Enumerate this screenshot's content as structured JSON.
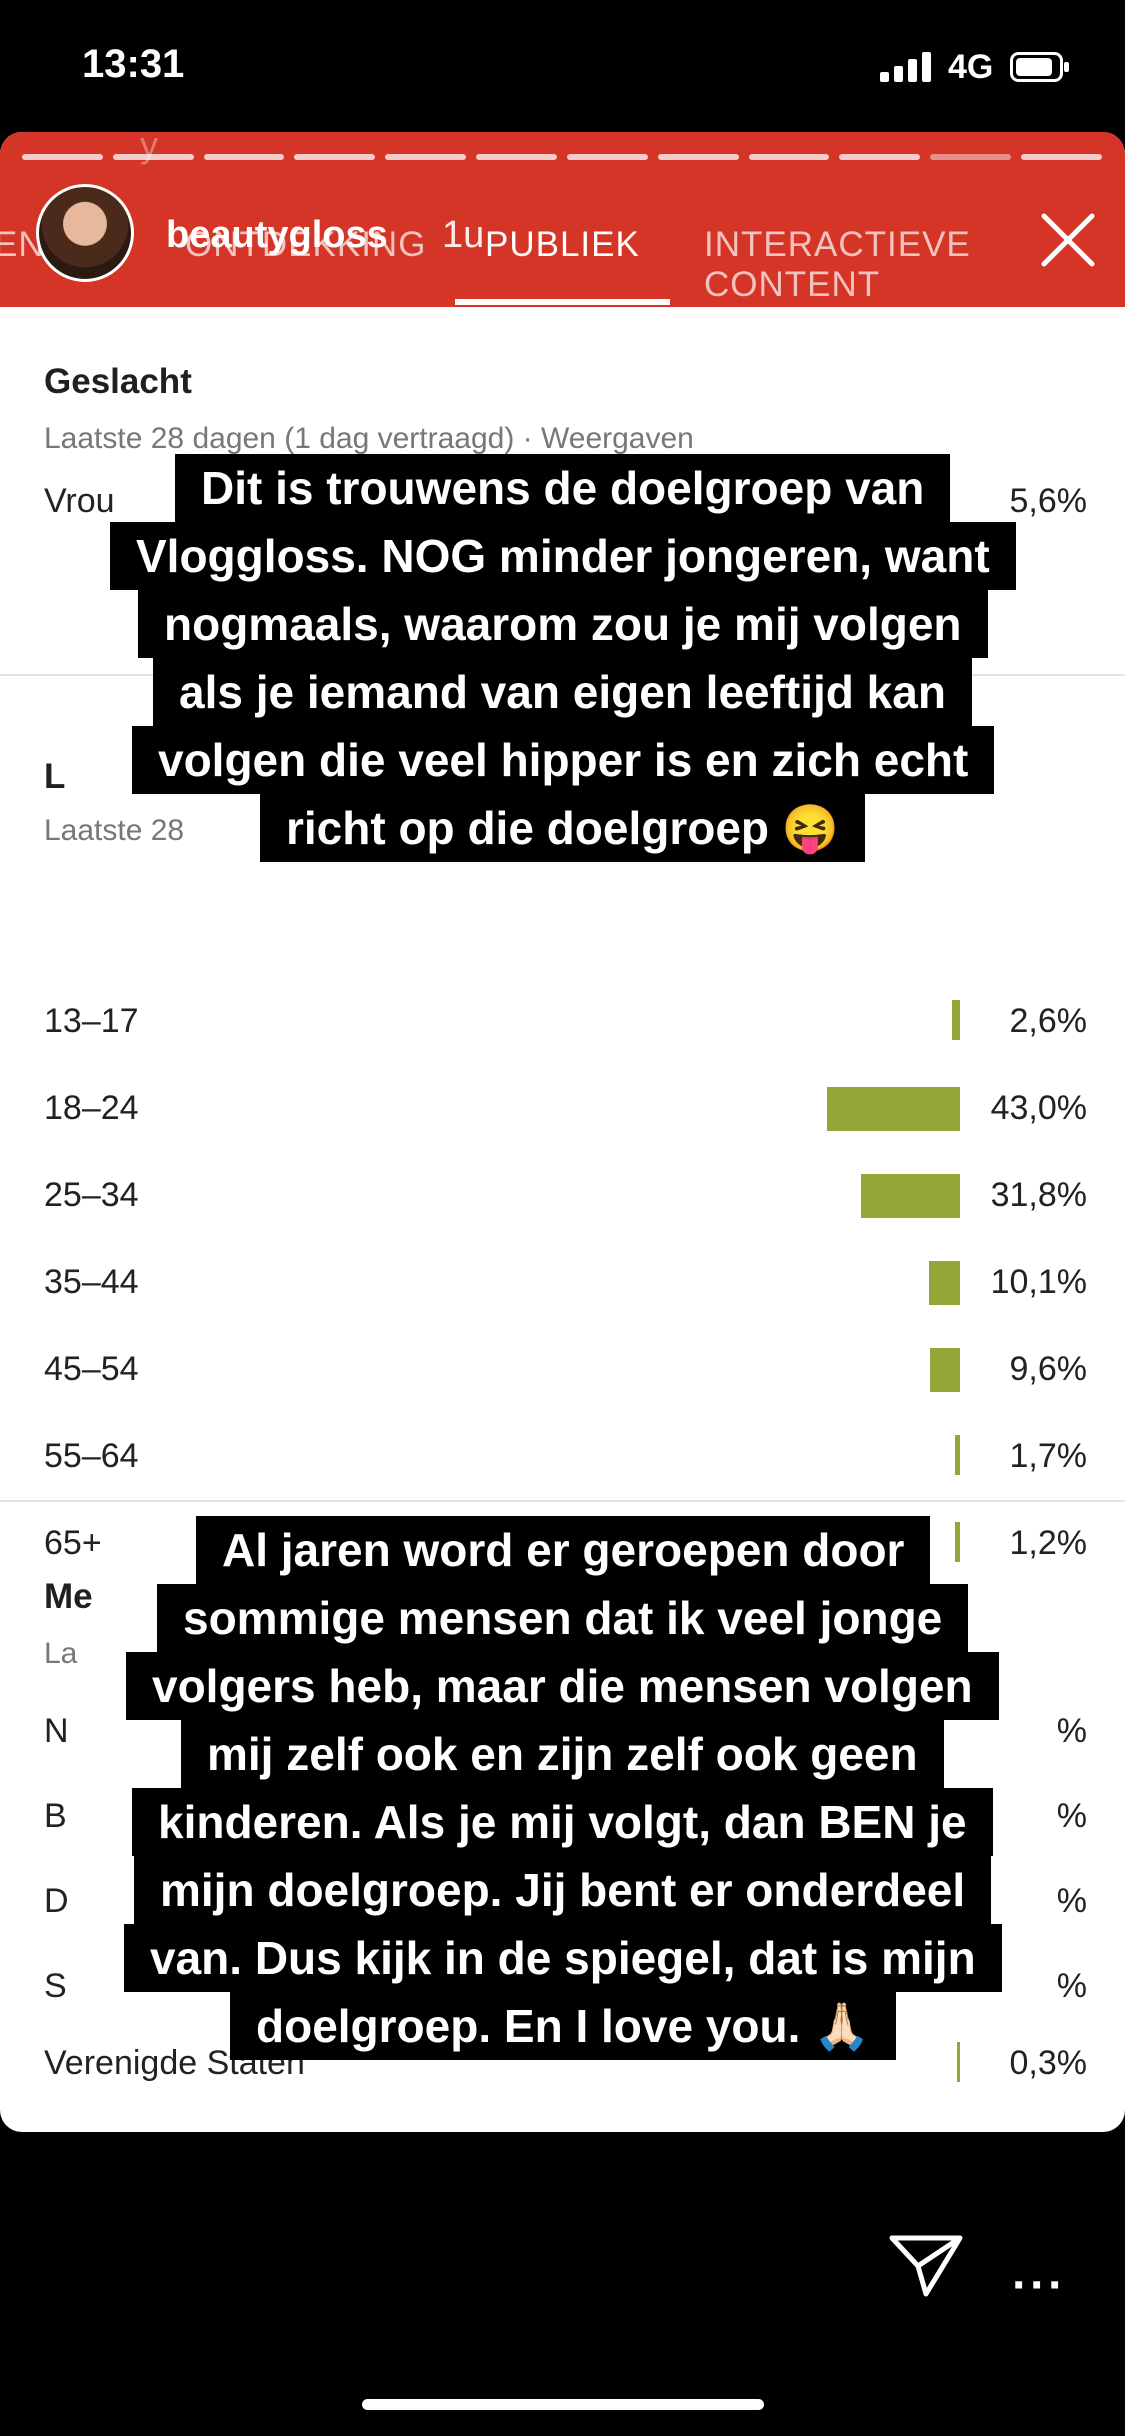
{
  "status_bar": {
    "time": "13:31",
    "network": "4G"
  },
  "story": {
    "username": "beautygloss",
    "time_ago": "1u",
    "faint_header": "y",
    "progress_segments": 12,
    "current_segment": 11
  },
  "analytics": {
    "tabs": [
      "EN",
      "ONTDEKKING",
      "PUBLIEK",
      "INTERACTIEVE CONTENT"
    ],
    "active_tab": "PUBLIEK",
    "gender": {
      "title": "Geslacht",
      "subtitle": "Laatste 28 dagen (1 dag vertraagd) · Weergaven",
      "row_label": "Vrou",
      "row_value": "5,6%"
    },
    "age": {
      "title_partial": "L",
      "subtitle_partial": "Laatste 28",
      "rows": [
        {
          "label": "13–17",
          "value": "2,6%",
          "pct": 2.6
        },
        {
          "label": "18–24",
          "value": "43,0%",
          "pct": 43.0
        },
        {
          "label": "25–34",
          "value": "31,8%",
          "pct": 31.8
        },
        {
          "label": "35–44",
          "value": "10,1%",
          "pct": 10.1
        },
        {
          "label": "45–54",
          "value": "9,6%",
          "pct": 9.6
        },
        {
          "label": "55–64",
          "value": "1,7%",
          "pct": 1.7
        },
        {
          "label": "65+",
          "value": "1,2%",
          "pct": 1.2
        }
      ]
    },
    "country": {
      "title_partial": "Me",
      "subtitle_partial": "La",
      "row_initials": [
        "N",
        "B",
        "D",
        "S"
      ],
      "row_value_suffix": "%",
      "last_row_label": "Verenigde Staten",
      "last_row_value": "0,3%",
      "last_row_pct": 0.3
    }
  },
  "captions": {
    "top": [
      "Dit is trouwens de doelgroep van",
      "Vloggloss. NOG minder jongeren, want",
      "nogmaals, waarom zou je mij volgen",
      "als je iemand van eigen leeftijd kan",
      "volgen die veel hipper is en zich echt",
      "richt op die doelgroep 😝"
    ],
    "bottom": [
      "Al jaren word er geroepen door",
      "sommige mensen dat ik veel jonge",
      "volgers heb, maar die mensen volgen",
      "mij zelf ook en zijn zelf ook geen",
      "kinderen. Als je mij volgt, dan BEN je",
      "mijn doelgroep. Jij bent er onderdeel",
      "van. Dus kijk in de spiegel, dat is mijn",
      "doelgroep. En I love you. 🙏🏻"
    ]
  },
  "colors": {
    "appbar": "#d43527",
    "bar": "#94a637"
  },
  "icons": {
    "send": "paper-plane-icon",
    "more": "more-dots-icon",
    "close": "close-icon"
  },
  "more_label": "···"
}
